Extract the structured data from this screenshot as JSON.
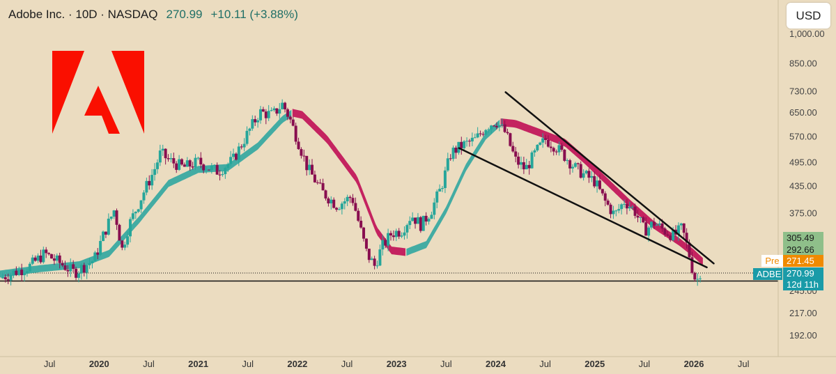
{
  "header": {
    "title": "Adobe Inc. · 10D · NASDAQ",
    "price": "270.99",
    "change": "+10.11 (+3.88%)"
  },
  "currency_button": "USD",
  "tags": {
    "pre_label": "Pre",
    "pre_value": "271.45",
    "ticker_label": "ADBE",
    "last_value": "270.99",
    "countdown": "12d 11h",
    "level_305": "305.49",
    "level_292": "292.66"
  },
  "colors": {
    "background": "#ebdcc0",
    "up": "#26a69a",
    "down": "#880e4f",
    "ribbon_up": "#3aa9a1",
    "ribbon_down": "#c2185b",
    "logo": "#fa0f00"
  },
  "chart_data": {
    "type": "candlestick",
    "title": "Adobe Inc. · 10D · NASDAQ",
    "log_scale": true,
    "y_ticks": [
      "1,000.00",
      "850.00",
      "730.00",
      "650.00",
      "570.00",
      "495.00",
      "435.00",
      "375.00",
      "245.00",
      "217.00",
      "192.00"
    ],
    "y_tick_values": [
      1000,
      850,
      730,
      650,
      570,
      495,
      435,
      375,
      245,
      217,
      192
    ],
    "x_ticks": [
      {
        "label": "Jul",
        "t": 2019.5,
        "bold": false
      },
      {
        "label": "2020",
        "t": 2020.0,
        "bold": true
      },
      {
        "label": "Jul",
        "t": 2020.5,
        "bold": false
      },
      {
        "label": "2021",
        "t": 2021.0,
        "bold": true
      },
      {
        "label": "Jul",
        "t": 2021.5,
        "bold": false
      },
      {
        "label": "2022",
        "t": 2022.0,
        "bold": true
      },
      {
        "label": "Jul",
        "t": 2022.5,
        "bold": false
      },
      {
        "label": "2023",
        "t": 2023.0,
        "bold": true
      },
      {
        "label": "Jul",
        "t": 2023.5,
        "bold": false
      },
      {
        "label": "2024",
        "t": 2024.0,
        "bold": true
      },
      {
        "label": "Jul",
        "t": 2024.5,
        "bold": false
      },
      {
        "label": "2025",
        "t": 2025.0,
        "bold": true
      },
      {
        "label": "Jul",
        "t": 2025.5,
        "bold": false
      },
      {
        "label": "2026",
        "t": 2026.0,
        "bold": true
      },
      {
        "label": "Jul",
        "t": 2026.5,
        "bold": false
      }
    ],
    "price_path": [
      [
        2019.0,
        262
      ],
      [
        2019.3,
        280
      ],
      [
        2019.45,
        300
      ],
      [
        2019.6,
        285
      ],
      [
        2019.75,
        270
      ],
      [
        2019.95,
        290
      ],
      [
        2020.05,
        335
      ],
      [
        2020.15,
        380
      ],
      [
        2020.2,
        340
      ],
      [
        2020.22,
        300
      ],
      [
        2020.3,
        350
      ],
      [
        2020.45,
        420
      ],
      [
        2020.55,
        470
      ],
      [
        2020.62,
        520
      ],
      [
        2020.7,
        500
      ],
      [
        2020.85,
        480
      ],
      [
        2021.0,
        495
      ],
      [
        2021.1,
        480
      ],
      [
        2021.2,
        470
      ],
      [
        2021.35,
        500
      ],
      [
        2021.5,
        580
      ],
      [
        2021.62,
        650
      ],
      [
        2021.75,
        640
      ],
      [
        2021.85,
        680
      ],
      [
        2021.92,
        630
      ],
      [
        2022.0,
        560
      ],
      [
        2022.1,
        480
      ],
      [
        2022.25,
        420
      ],
      [
        2022.4,
        390
      ],
      [
        2022.55,
        410
      ],
      [
        2022.7,
        300
      ],
      [
        2022.78,
        280
      ],
      [
        2022.85,
        310
      ],
      [
        2022.95,
        335
      ],
      [
        2023.05,
        340
      ],
      [
        2023.15,
        370
      ],
      [
        2023.25,
        350
      ],
      [
        2023.35,
        380
      ],
      [
        2023.45,
        430
      ],
      [
        2023.55,
        520
      ],
      [
        2023.65,
        540
      ],
      [
        2023.8,
        560
      ],
      [
        2023.9,
        600
      ],
      [
        2024.0,
        620
      ],
      [
        2024.1,
        580
      ],
      [
        2024.2,
        500
      ],
      [
        2024.3,
        475
      ],
      [
        2024.4,
        520
      ],
      [
        2024.5,
        560
      ],
      [
        2024.6,
        540
      ],
      [
        2024.7,
        510
      ],
      [
        2024.8,
        480
      ],
      [
        2024.9,
        460
      ],
      [
        2025.0,
        445
      ],
      [
        2025.1,
        400
      ],
      [
        2025.2,
        370
      ],
      [
        2025.3,
        400
      ],
      [
        2025.4,
        380
      ],
      [
        2025.5,
        340
      ],
      [
        2025.6,
        355
      ],
      [
        2025.7,
        340
      ],
      [
        2025.8,
        330
      ],
      [
        2025.88,
        345
      ],
      [
        2025.95,
        300
      ],
      [
        2026.0,
        265
      ],
      [
        2026.03,
        258
      ],
      [
        2026.06,
        271
      ]
    ],
    "ribbon_path": [
      [
        2019.0,
        268
      ],
      [
        2019.4,
        276
      ],
      [
        2019.8,
        282
      ],
      [
        2020.1,
        300
      ],
      [
        2020.4,
        360
      ],
      [
        2020.7,
        440
      ],
      [
        2021.0,
        475
      ],
      [
        2021.3,
        480
      ],
      [
        2021.6,
        540
      ],
      [
        2021.85,
        625
      ],
      [
        2021.95,
        648
      ],
      [
        2022.05,
        640
      ],
      [
        2022.3,
        560
      ],
      [
        2022.6,
        450
      ],
      [
        2022.8,
        340
      ],
      [
        2022.95,
        305
      ],
      [
        2023.1,
        302
      ],
      [
        2023.3,
        315
      ],
      [
        2023.5,
        380
      ],
      [
        2023.7,
        480
      ],
      [
        2023.9,
        570
      ],
      [
        2024.05,
        615
      ],
      [
        2024.2,
        610
      ],
      [
        2024.45,
        580
      ],
      [
        2024.7,
        550
      ],
      [
        2024.9,
        500
      ],
      [
        2025.1,
        450
      ],
      [
        2025.35,
        395
      ],
      [
        2025.6,
        350
      ],
      [
        2025.85,
        320
      ],
      [
        2026.0,
        300
      ],
      [
        2026.1,
        285
      ]
    ],
    "ribbon_direction": [
      [
        2019.0,
        2021.95,
        "up"
      ],
      [
        2021.95,
        2023.1,
        "down"
      ],
      [
        2023.1,
        2024.05,
        "up"
      ],
      [
        2024.05,
        2026.1,
        "down"
      ]
    ],
    "trendlines": [
      {
        "from": [
          2024.1,
          725
        ],
        "to": [
          2026.2,
          284
        ]
      },
      {
        "from": [
          2023.63,
          534
        ],
        "to": [
          2026.13,
          278
        ]
      }
    ],
    "horizontal_levels": [
      {
        "value": 269.5,
        "style": "dotted"
      },
      {
        "value": 258,
        "style": "solid"
      }
    ]
  }
}
